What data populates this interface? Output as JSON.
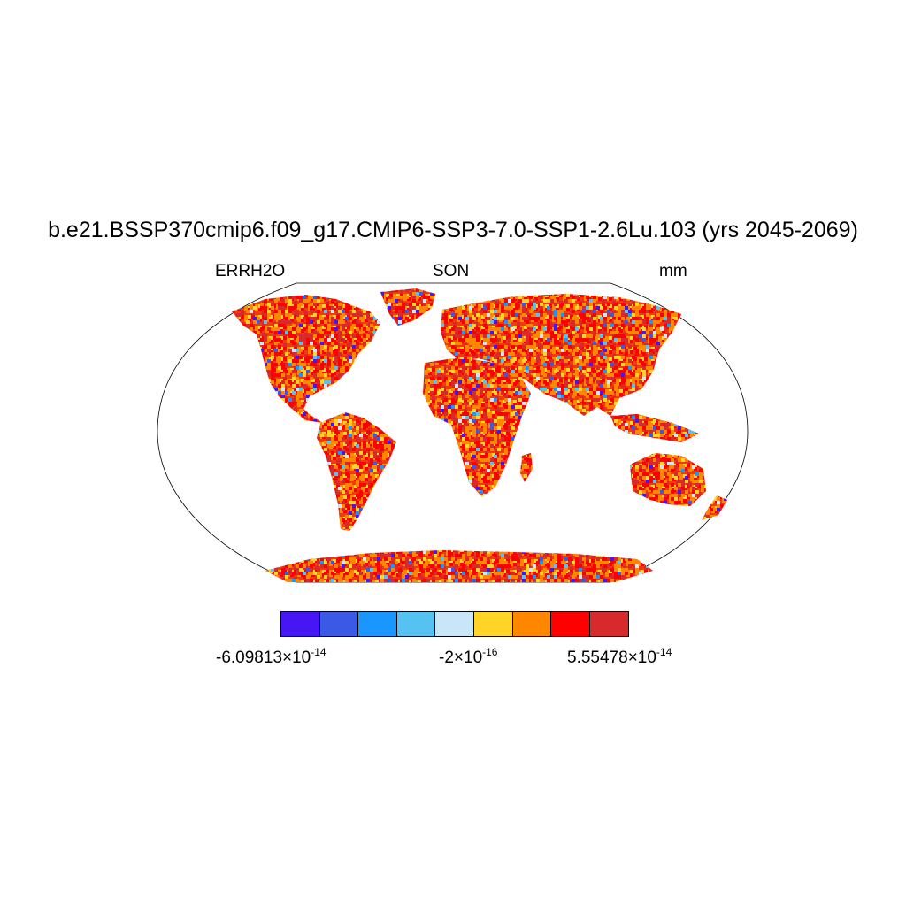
{
  "title": "b.e21.BSSP370cmip6.f09_g17.CMIP6-SSP3-7.0-SSP1-2.6Lu.103 (yrs 2045-2069)",
  "subtitle_left": "ERRH2O",
  "subtitle_center": "SON",
  "subtitle_right": "mm",
  "colorbar": {
    "colors": [
      "#4616f5",
      "#3a5ae6",
      "#1a96ff",
      "#55c2f2",
      "#c8e6f8",
      "#ffd427",
      "#ff8700",
      "#ff0000",
      "#d72a2c"
    ],
    "labels": [
      {
        "mantissa": "-6.09813",
        "times": "×10",
        "exp": "-14"
      },
      {
        "mantissa": "-2",
        "times": "×10",
        "exp": "-16"
      },
      {
        "mantissa": "5.55478",
        "times": "×10",
        "exp": "-14"
      }
    ]
  },
  "map": {
    "projection": "robinson",
    "land_fill": "mottled field dominated by red/orange with scattered blue and yellow cells",
    "ocean_fill": "#ffffff"
  }
}
